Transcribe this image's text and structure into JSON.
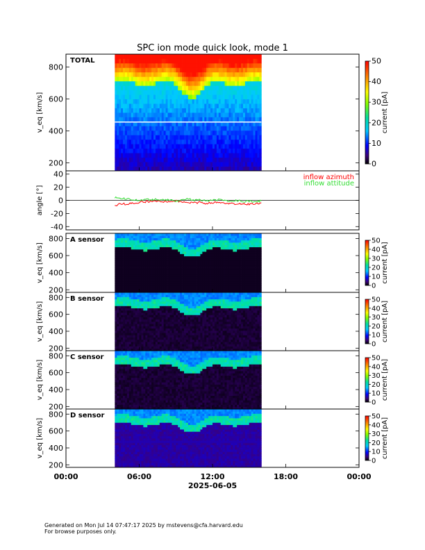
{
  "title": "SPC ion mode quick look, mode 1",
  "x_ticks": [
    "00:00",
    "06:00",
    "12:00",
    "18:00",
    "00:00"
  ],
  "x_date": "2025-06-05",
  "footer": {
    "line1": "Generated on Mon Jul 14 07:47:17 2025 by mstevens@cfa.harvard.edu",
    "line2": "For browse purposes only."
  },
  "colors": {
    "azimuth": "#ff0000",
    "attitude": "#33dd33"
  },
  "chart_data": [
    {
      "type": "heatmap",
      "panel_label": "TOTAL",
      "ylabel": "v_eq [km/s]",
      "yticks": [
        200,
        400,
        600,
        800
      ],
      "ylim": [
        150,
        880
      ],
      "data_time_range_hours": [
        4.0,
        16.0
      ],
      "colorbar": {
        "label": "current [pA]",
        "ticks": [
          0,
          10,
          20,
          30,
          40,
          50
        ],
        "range": [
          0,
          50
        ]
      }
    },
    {
      "type": "line",
      "ylabel": "angle [°]",
      "yticks": [
        -40,
        -20,
        0,
        20,
        40
      ],
      "ylim": [
        -45,
        45
      ],
      "x": [
        4.0,
        4.5,
        5.0,
        5.5,
        6.0,
        6.5,
        7.0,
        7.5,
        8.0,
        8.5,
        9.0,
        9.5,
        10.0,
        10.5,
        11.0,
        11.5,
        12.0,
        12.5,
        13.0,
        13.5,
        14.0,
        14.5,
        15.0,
        15.5,
        16.0
      ],
      "series": [
        {
          "name": "inflow azimuth",
          "values": [
            -8,
            -5,
            -6,
            -4,
            -3,
            -2,
            -1,
            -1,
            -2,
            -3,
            -1,
            -2,
            -3,
            -4,
            -3,
            -5,
            -4,
            -3,
            -5,
            -4,
            -6,
            -5,
            -6,
            -5,
            -4
          ]
        },
        {
          "name": "inflow attitude",
          "values": [
            4,
            3,
            2,
            1,
            0,
            2,
            1,
            2,
            0,
            1,
            -1,
            1,
            2,
            0,
            1,
            -1,
            0,
            1,
            0,
            -1,
            0,
            -2,
            -1,
            -2,
            -1
          ]
        }
      ],
      "zero_line": true
    },
    {
      "type": "heatmap",
      "panel_label": "A sensor",
      "ylabel": "v_eq [km/s]",
      "yticks": [
        200,
        400,
        600,
        800
      ],
      "ylim": [
        170,
        860
      ],
      "colorbar": {
        "label": "current [pA]",
        "ticks": [
          0,
          10,
          20,
          30,
          40,
          50
        ],
        "range": [
          0,
          50
        ]
      }
    },
    {
      "type": "heatmap",
      "panel_label": "B sensor",
      "ylabel": "v_eq [km/s]",
      "yticks": [
        200,
        400,
        600,
        800
      ],
      "ylim": [
        170,
        860
      ],
      "colorbar": {
        "label": "current [pA]",
        "ticks": [
          0,
          10,
          20,
          30,
          40,
          50
        ],
        "range": [
          0,
          50
        ]
      }
    },
    {
      "type": "heatmap",
      "panel_label": "C sensor",
      "ylabel": "v_eq [km/s]",
      "yticks": [
        200,
        400,
        600,
        800
      ],
      "ylim": [
        170,
        860
      ],
      "colorbar": {
        "label": "current [pA]",
        "ticks": [
          0,
          10,
          20,
          30,
          40,
          50
        ],
        "range": [
          0,
          50
        ]
      }
    },
    {
      "type": "heatmap",
      "panel_label": "D sensor",
      "ylabel": "v_eq [km/s]",
      "yticks": [
        200,
        400,
        600,
        800
      ],
      "ylim": [
        170,
        860
      ],
      "colorbar": {
        "label": "current [pA]",
        "ticks": [
          0,
          10,
          20,
          30,
          40,
          50
        ],
        "range": [
          0,
          50
        ]
      }
    }
  ]
}
